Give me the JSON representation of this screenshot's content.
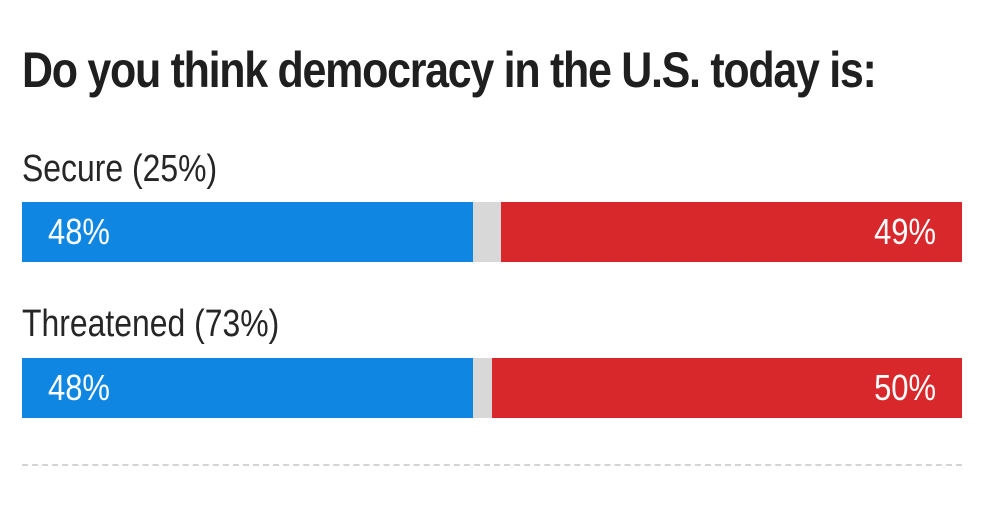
{
  "chart_data": {
    "type": "bar",
    "stacked": true,
    "orientation": "horizontal",
    "title": "Do you think democracy in the U.S. today is:",
    "categories": [
      "Secure (25%)",
      "Threatened (73%)"
    ],
    "series": [
      {
        "name": "left",
        "color": "#0f87e2",
        "values": [
          48,
          48
        ],
        "labels": [
          "48%",
          "48%"
        ]
      },
      {
        "name": "other",
        "color": "#d8d8d8",
        "values": [
          3,
          2
        ],
        "labels": [
          "",
          ""
        ]
      },
      {
        "name": "right",
        "color": "#d8282b",
        "values": [
          49,
          50
        ],
        "labels": [
          "49%",
          "50%"
        ]
      }
    ],
    "xlim": [
      0,
      100
    ],
    "xlabel": "",
    "ylabel": "",
    "legend": "none",
    "grid": false
  }
}
